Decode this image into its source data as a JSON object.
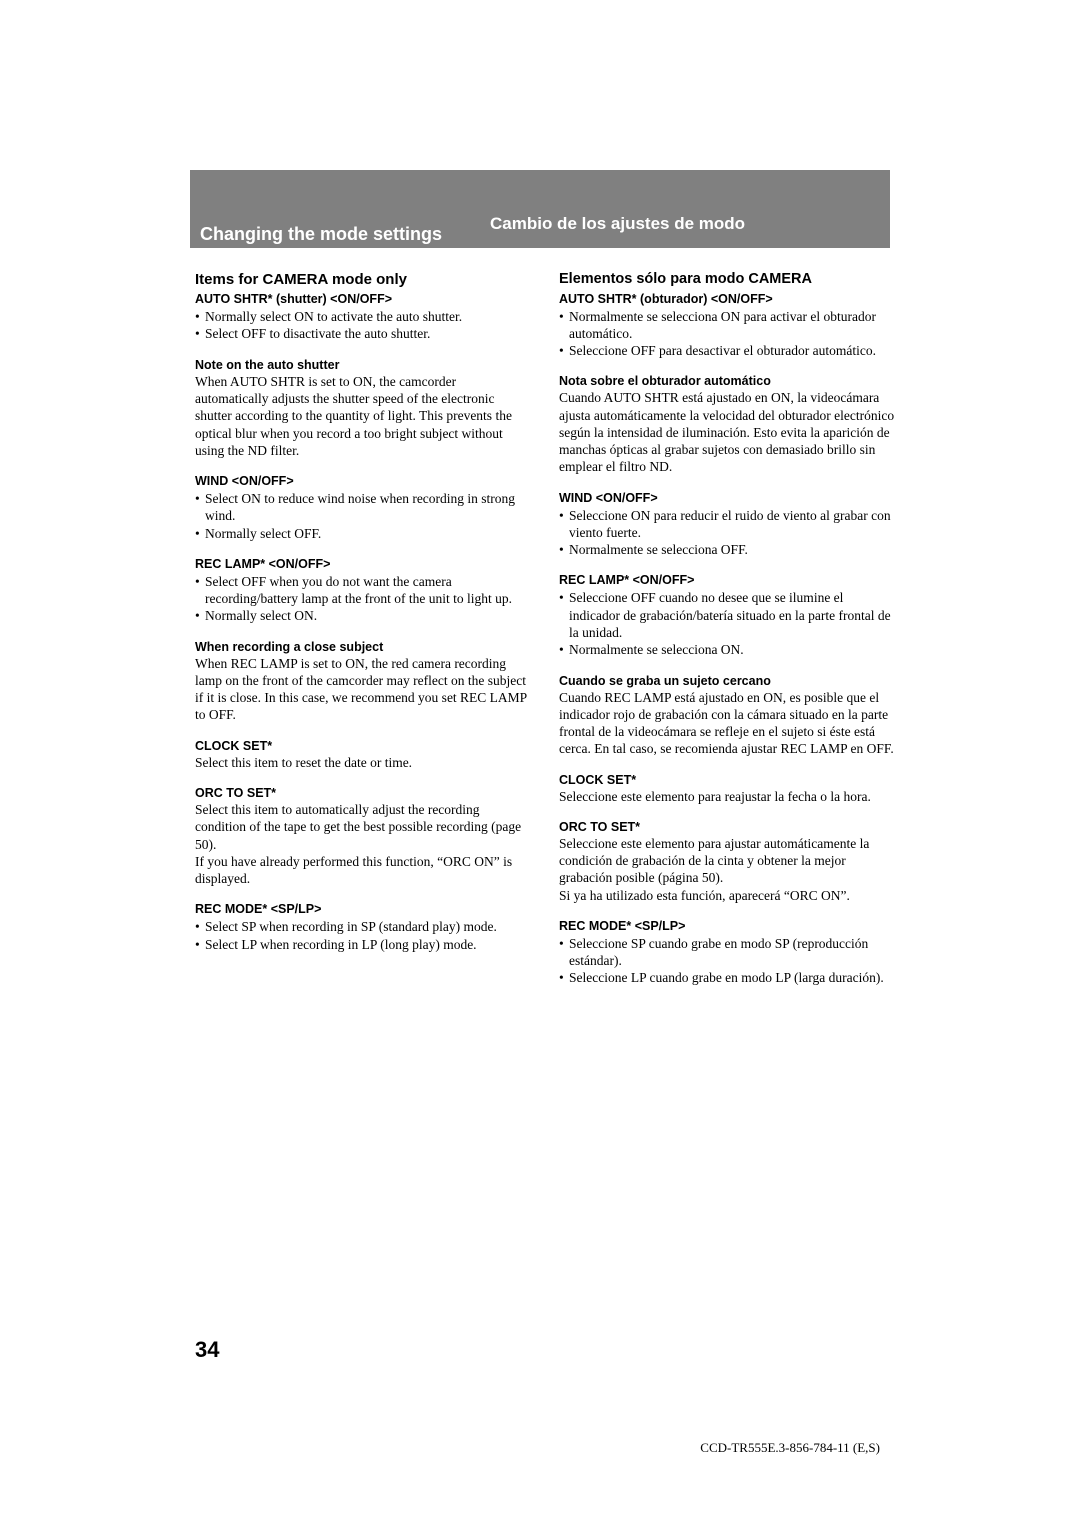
{
  "colors": {
    "bar_bg": "#808080",
    "bar_text": "#ffffff",
    "text": "#000000"
  },
  "titles": {
    "left": "Changing the mode settings",
    "right": "Cambio de los ajustes de modo"
  },
  "left": {
    "header": "Items for CAMERA mode only",
    "auto_shtr_label": "AUTO SHTR* (shutter) <ON/OFF>",
    "auto_shtr_bullets": [
      "Normally select ON to activate the auto shutter.",
      "Select OFF to disactivate the auto shutter."
    ],
    "auto_note_label": "Note on the auto shutter",
    "auto_note_body": "When AUTO SHTR is set to ON, the camcorder automatically adjusts the shutter speed of the electronic shutter according to the quantity of light.  This prevents the optical blur when you record a too bright subject without using the ND filter.",
    "wind_label": "WIND <ON/OFF>",
    "wind_bullets": [
      "Select ON to reduce wind noise when recording in strong wind.",
      "Normally select OFF."
    ],
    "reclamp_label": "REC LAMP* <ON/OFF>",
    "reclamp_bullets": [
      "Select OFF when you do not want the camera recording/battery lamp at the front of the unit to light up.",
      "Normally select ON."
    ],
    "close_label": "When recording a close subject",
    "close_body": "When REC LAMP is set to ON, the red camera recording lamp on the front of the camcorder may reflect on the subject if it is close.  In this case, we recommend you set REC LAMP to OFF.",
    "clock_label": "CLOCK SET*",
    "clock_body": "Select this item to reset the date or time.",
    "orc_label": "ORC TO SET*",
    "orc_body1": "Select this item to automatically adjust the recording condition of the tape to get the best possible recording (page 50).",
    "orc_body2": "If you have already performed this function, “ORC ON” is displayed.",
    "recmode_label": "REC MODE* <SP/LP>",
    "recmode_bullets": [
      "Select SP when recording in SP (standard play) mode.",
      "Select LP when recording in LP (long play) mode."
    ]
  },
  "right": {
    "header": "Elementos sólo para modo CAMERA",
    "auto_shtr_label": "AUTO SHTR* (obturador) <ON/OFF>",
    "auto_shtr_bullets": [
      "Normalmente se selecciona ON para activar el obturador automático.",
      "Seleccione OFF para desactivar el obturador automático."
    ],
    "auto_note_label": "Nota sobre el obturador automático",
    "auto_note_body": "Cuando AUTO SHTR está ajustado en ON, la videocámara ajusta automáticamente la velocidad del obturador electrónico según la intensidad de iluminación. Esto evita la aparición de manchas ópticas al grabar sujetos con demasiado brillo sin emplear el filtro ND.",
    "wind_label": "WIND <ON/OFF>",
    "wind_bullets": [
      "Seleccione ON para reducir el ruido de viento al grabar con viento fuerte.",
      "Normalmente se selecciona OFF."
    ],
    "reclamp_label": "REC LAMP* <ON/OFF>",
    "reclamp_bullets": [
      "Seleccione OFF cuando no desee que se ilumine el indicador de grabación/batería situado en la parte frontal de la unidad.",
      "Normalmente se selecciona ON."
    ],
    "close_label": "Cuando se graba un sujeto cercano",
    "close_body": "Cuando REC LAMP está ajustado en ON, es posible que el indicador rojo de grabación con la cámara situado en la parte frontal de la videocámara se refleje en el sujeto si éste está cerca. En tal caso, se recomienda ajustar REC LAMP en OFF.",
    "clock_label": "CLOCK SET*",
    "clock_body": "Seleccione este elemento para reajustar la fecha o la hora.",
    "orc_label": "ORC TO SET*",
    "orc_body1": "Seleccione este elemento para ajustar automáticamente la condición de grabación de la cinta y obtener la mejor grabación posible (página 50).",
    "orc_body2": "Si ya ha utilizado esta función, aparecerá “ORC ON”.",
    "recmode_label": "REC MODE* <SP/LP>",
    "recmode_bullets": [
      "Seleccione SP cuando grabe en modo SP (reproducción estándar).",
      "Seleccione LP cuando grabe en modo LP (larga duración)."
    ]
  },
  "page_number": "34",
  "footer": "CCD-TR555E.3-856-784-11 (E,S)"
}
